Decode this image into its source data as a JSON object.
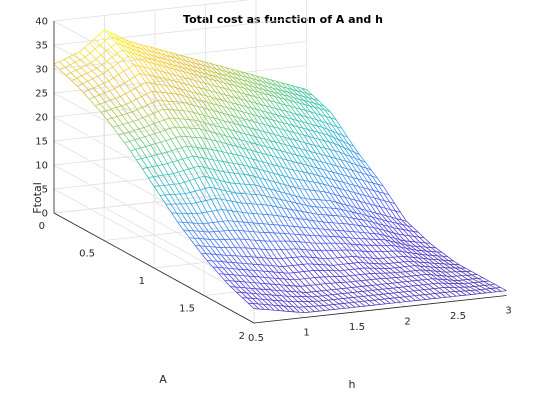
{
  "chart_data": {
    "type": "surface",
    "title": "Total cost as function of A and h",
    "xlabel": "h",
    "ylabel": "A",
    "zlabel": "Ftotal",
    "xlim": [
      0.5,
      3
    ],
    "ylim": [
      0,
      2
    ],
    "zlim": [
      0,
      40
    ],
    "x_ticks": [
      "0.5",
      "1",
      "1.5",
      "2",
      "2.5",
      "3"
    ],
    "y_ticks": [
      "0",
      "0.5",
      "1",
      "1.5",
      "2"
    ],
    "z_ticks": [
      "0",
      "5",
      "10",
      "15",
      "20",
      "25",
      "30",
      "35",
      "40"
    ],
    "colormap": [
      "#3e26a8",
      "#4530d3",
      "#3a5ff2",
      "#2b8de8",
      "#1fb2c5",
      "#36c496",
      "#8dc754",
      "#d8ba32",
      "#fbd324",
      "#f9fb0e"
    ],
    "grid": true,
    "h_samples": [
      0.5,
      0.75,
      1.0,
      1.25,
      1.5,
      1.75,
      2.0,
      2.25,
      2.5,
      2.75,
      3.0
    ],
    "A_samples": [
      0,
      0.25,
      0.5,
      0.75,
      1.0,
      1.25,
      1.5,
      1.75,
      2.0
    ],
    "Ftotal": [
      [
        31,
        33,
        37,
        34,
        32,
        30,
        28,
        26,
        24,
        22,
        20
      ],
      [
        29,
        31,
        34,
        32,
        30,
        28,
        26,
        24,
        22,
        20,
        18
      ],
      [
        26,
        27,
        29,
        28,
        26,
        24,
        22,
        20,
        18,
        16,
        13
      ],
      [
        22,
        23,
        24,
        23,
        21,
        19,
        17,
        15,
        13,
        11,
        9
      ],
      [
        17,
        17,
        18,
        16,
        15,
        13,
        11,
        10,
        8,
        6,
        4
      ],
      [
        12,
        11,
        11,
        10,
        9,
        8,
        7,
        6,
        5,
        3,
        2
      ],
      [
        8,
        7,
        6,
        5,
        5,
        4,
        4,
        3,
        3,
        2,
        1
      ],
      [
        5,
        4,
        3,
        2,
        2,
        2,
        2,
        2,
        2,
        1,
        1
      ],
      [
        3,
        2,
        1,
        1,
        1,
        1,
        1,
        1,
        1,
        1,
        1
      ]
    ]
  }
}
